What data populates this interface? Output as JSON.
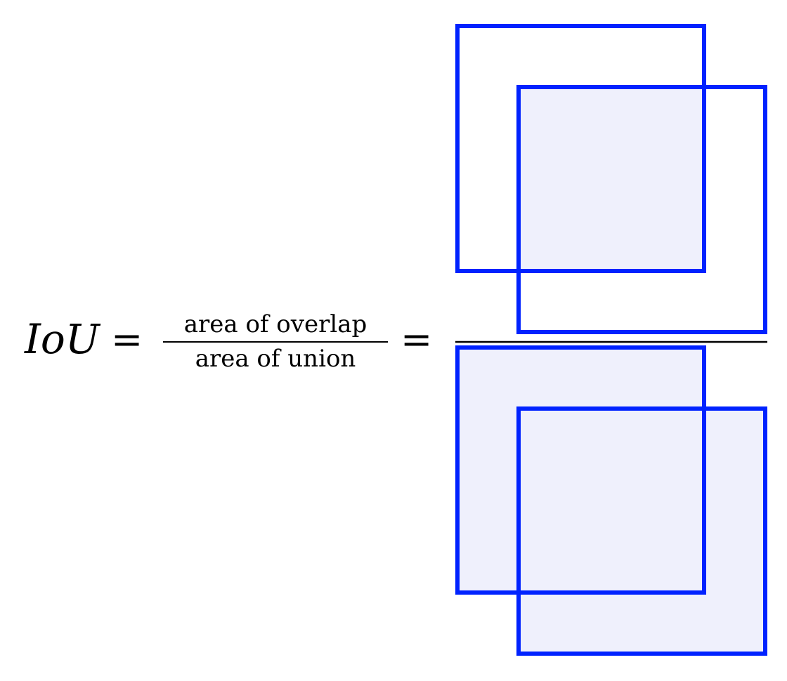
{
  "formula": {
    "lhs": "IoU",
    "equals_1": "=",
    "fraction_numerator": "area of overlap",
    "fraction_denominator": "area of union",
    "equals_2": "="
  },
  "colors": {
    "box_stroke": "#0022ff",
    "fill": "#eff0fc",
    "text": "#000000",
    "background": "#ffffff"
  }
}
